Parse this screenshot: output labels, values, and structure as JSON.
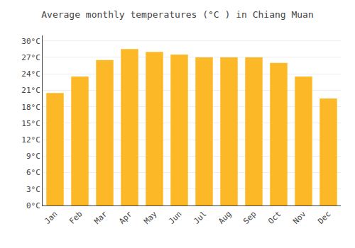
{
  "chart_data": {
    "type": "bar",
    "title": "Average monthly temperatures (°C ) in Chiang Muan",
    "categories": [
      "Jan",
      "Feb",
      "Mar",
      "Apr",
      "May",
      "Jun",
      "Jul",
      "Aug",
      "Sep",
      "Oct",
      "Nov",
      "Dec"
    ],
    "values": [
      20.5,
      23.5,
      26.5,
      28.5,
      28.0,
      27.5,
      27.0,
      27.0,
      27.0,
      26.0,
      23.5,
      19.5
    ],
    "color": "#FDB827",
    "ylim": [
      0,
      31
    ],
    "yticks": [
      {
        "value": 0,
        "label": "0°C"
      },
      {
        "value": 3,
        "label": "3°C"
      },
      {
        "value": 6,
        "label": "6°C"
      },
      {
        "value": 9,
        "label": "9°C"
      },
      {
        "value": 12,
        "label": "12°C"
      },
      {
        "value": 15,
        "label": "15°C"
      },
      {
        "value": 18,
        "label": "18°C"
      },
      {
        "value": 21,
        "label": "21°C"
      },
      {
        "value": 24,
        "label": "24°C"
      },
      {
        "value": 27,
        "label": "27°C"
      },
      {
        "value": 30,
        "label": "30°C"
      }
    ],
    "grid": true
  }
}
